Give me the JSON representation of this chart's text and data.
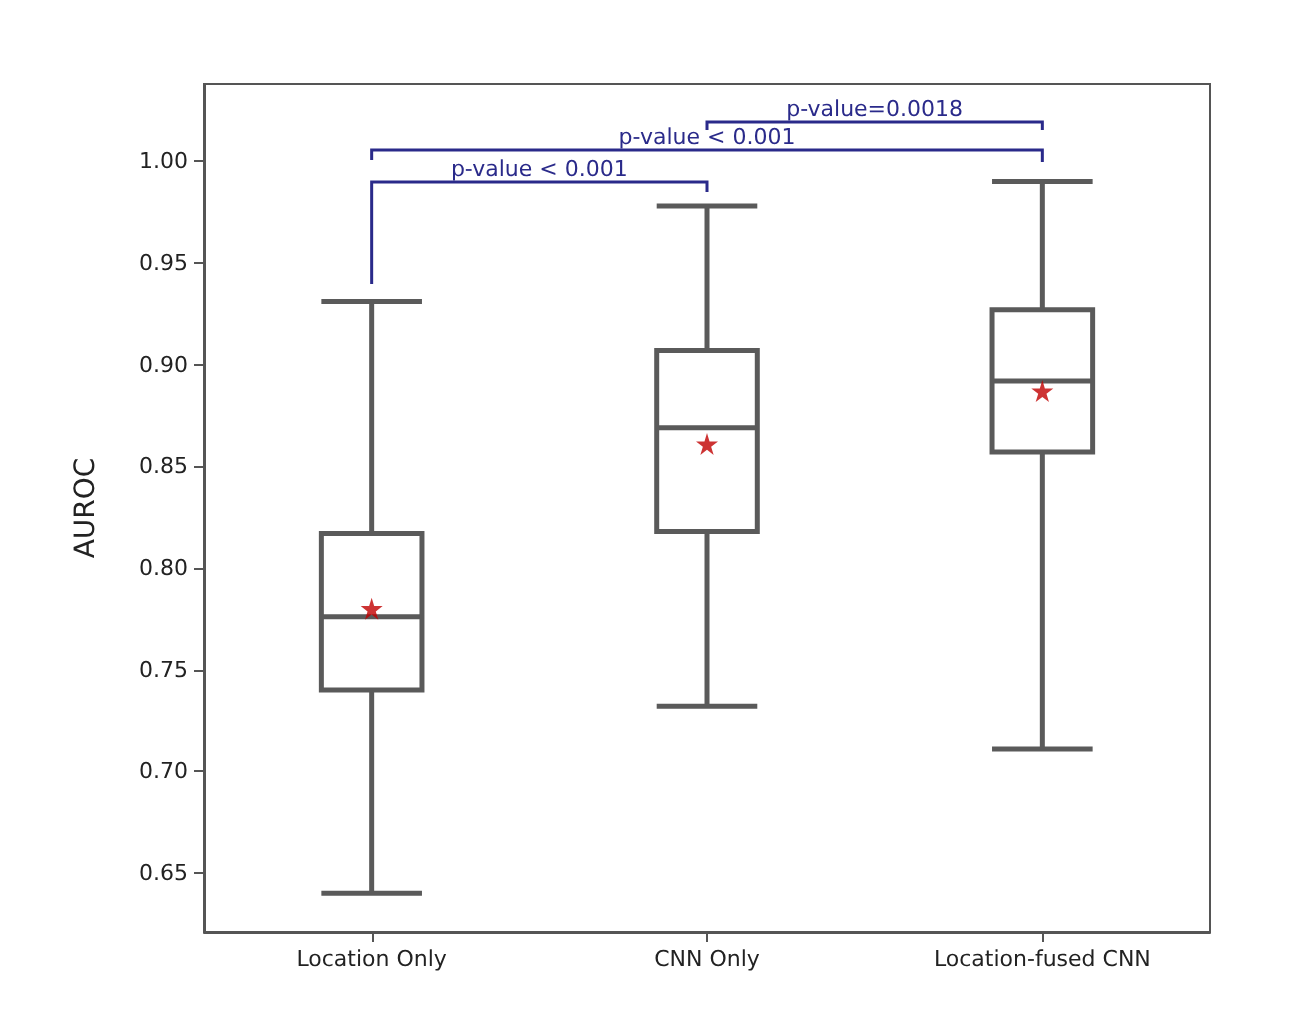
{
  "chart_data": {
    "type": "box",
    "ylabel": "AUROC",
    "categories": [
      "Location Only",
      "CNN Only",
      "Location-fused CNN"
    ],
    "series": [
      {
        "color": "#5a5a5a",
        "boxes": [
          {
            "low": 0.64,
            "q1": 0.74,
            "median": 0.776,
            "q3": 0.817,
            "high": 0.931
          },
          {
            "low": 0.732,
            "q1": 0.818,
            "median": 0.869,
            "q3": 0.907,
            "high": 0.978
          },
          {
            "low": 0.711,
            "q1": 0.857,
            "median": 0.892,
            "q3": 0.927,
            "high": 0.99
          }
        ]
      },
      {
        "type": "scatter",
        "color": "#c00000",
        "x": [
          "Location Only",
          "CNN Only",
          "Location-fused CNN"
        ],
        "values": [
          0.78,
          0.861,
          0.887
        ]
      }
    ],
    "marker": "star",
    "ylim": [
      0.621,
      1.038
    ],
    "yticks": [
      {
        "value": 0.65,
        "label": "0.65"
      },
      {
        "value": 0.7,
        "label": "0.70"
      },
      {
        "value": 0.75,
        "label": "0.75"
      },
      {
        "value": 0.8,
        "label": "0.80"
      },
      {
        "value": 0.85,
        "label": "0.85"
      },
      {
        "value": 0.9,
        "label": "0.90"
      },
      {
        "value": 0.95,
        "label": "0.95"
      },
      {
        "value": 1.0,
        "label": "1.00"
      }
    ],
    "grid": false,
    "annotations": [
      "p-value < 0.001",
      "p-value < 0.001",
      "p-value=0.0018"
    ]
  }
}
